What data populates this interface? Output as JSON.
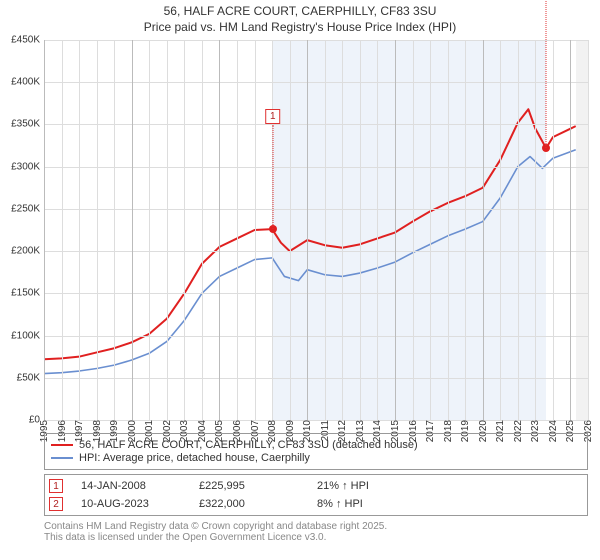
{
  "title_line1": "56, HALF ACRE COURT, CAERPHILLY, CF83 3SU",
  "title_line2": "Price paid vs. HM Land Registry's House Price Index (HPI)",
  "chart": {
    "type": "line",
    "background_color": "#ffffff",
    "grid_color": "#dddddd",
    "grid_color_emph": "#bbbbbb",
    "x_min": 1995,
    "x_max": 2026,
    "y_min": 0,
    "y_max": 450000,
    "ytick_step": 50000,
    "yticks": [
      "£0",
      "£50K",
      "£100K",
      "£150K",
      "£200K",
      "£250K",
      "£300K",
      "£350K",
      "£400K",
      "£450K"
    ],
    "xticks": [
      1995,
      1996,
      1997,
      1998,
      1999,
      2000,
      2001,
      2002,
      2003,
      2004,
      2005,
      2006,
      2007,
      2008,
      2009,
      2010,
      2011,
      2012,
      2013,
      2014,
      2015,
      2016,
      2017,
      2018,
      2019,
      2020,
      2021,
      2022,
      2023,
      2024,
      2025,
      2026
    ],
    "shaded_region": {
      "from": 2008.04,
      "to": 2023.61,
      "color": "#eef3fa"
    },
    "shaded_future": {
      "from": 2025.3,
      "to": 2026,
      "color": "#f2f2f2"
    },
    "series": [
      {
        "name": "property",
        "label": "56, HALF ACRE COURT, CAERPHILLY, CF83 3SU (detached house)",
        "color": "#e02020",
        "line_width": 2,
        "data": [
          [
            1995,
            72000
          ],
          [
            1996,
            73000
          ],
          [
            1997,
            75000
          ],
          [
            1998,
            80000
          ],
          [
            1999,
            85000
          ],
          [
            2000,
            92000
          ],
          [
            2001,
            102000
          ],
          [
            2002,
            120000
          ],
          [
            2003,
            150000
          ],
          [
            2004,
            185000
          ],
          [
            2005,
            205000
          ],
          [
            2006,
            215000
          ],
          [
            2007,
            225000
          ],
          [
            2008,
            226000
          ],
          [
            2008.5,
            210000
          ],
          [
            2009,
            200000
          ],
          [
            2010,
            213000
          ],
          [
            2011,
            207000
          ],
          [
            2012,
            204000
          ],
          [
            2013,
            208000
          ],
          [
            2014,
            215000
          ],
          [
            2015,
            222000
          ],
          [
            2016,
            235000
          ],
          [
            2017,
            247000
          ],
          [
            2018,
            257000
          ],
          [
            2019,
            265000
          ],
          [
            2020,
            275000
          ],
          [
            2021,
            308000
          ],
          [
            2022,
            352000
          ],
          [
            2022.6,
            368000
          ],
          [
            2023,
            345000
          ],
          [
            2023.61,
            322000
          ],
          [
            2024,
            335000
          ],
          [
            2025,
            345000
          ],
          [
            2025.3,
            348000
          ]
        ]
      },
      {
        "name": "hpi",
        "label": "HPI: Average price, detached house, Caerphilly",
        "color": "#6a8fd0",
        "line_width": 1.6,
        "data": [
          [
            1995,
            55000
          ],
          [
            1996,
            56000
          ],
          [
            1997,
            58000
          ],
          [
            1998,
            61000
          ],
          [
            1999,
            65000
          ],
          [
            2000,
            71000
          ],
          [
            2001,
            79000
          ],
          [
            2002,
            93000
          ],
          [
            2003,
            118000
          ],
          [
            2004,
            150000
          ],
          [
            2005,
            170000
          ],
          [
            2006,
            180000
          ],
          [
            2007,
            190000
          ],
          [
            2008,
            192000
          ],
          [
            2008.7,
            170000
          ],
          [
            2009.5,
            165000
          ],
          [
            2010,
            178000
          ],
          [
            2011,
            172000
          ],
          [
            2012,
            170000
          ],
          [
            2013,
            174000
          ],
          [
            2014,
            180000
          ],
          [
            2015,
            187000
          ],
          [
            2016,
            198000
          ],
          [
            2017,
            208000
          ],
          [
            2018,
            218000
          ],
          [
            2019,
            226000
          ],
          [
            2020,
            235000
          ],
          [
            2021,
            263000
          ],
          [
            2022,
            300000
          ],
          [
            2022.7,
            312000
          ],
          [
            2023.4,
            298000
          ],
          [
            2024,
            310000
          ],
          [
            2025.3,
            320000
          ]
        ]
      }
    ],
    "markers": [
      {
        "key": "1",
        "x": 2008.04,
        "y": 225995,
        "color": "#e02020",
        "label_y_offset": -120
      },
      {
        "key": "2",
        "x": 2023.61,
        "y": 322000,
        "color": "#e02020",
        "label_y_offset": -255
      }
    ]
  },
  "legend": {
    "items": [
      {
        "color": "#e02020",
        "label": "56, HALF ACRE COURT, CAERPHILLY, CF83 3SU (detached house)"
      },
      {
        "color": "#6a8fd0",
        "label": "HPI: Average price, detached house, Caerphilly"
      }
    ]
  },
  "annotations_table": {
    "rows": [
      {
        "key": "1",
        "date": "14-JAN-2008",
        "price": "£225,995",
        "delta": "21% ↑ HPI"
      },
      {
        "key": "2",
        "date": "10-AUG-2023",
        "price": "£322,000",
        "delta": "8% ↑ HPI"
      }
    ]
  },
  "footnote_line1": "Contains HM Land Registry data © Crown copyright and database right 2025.",
  "footnote_line2": "This data is licensed under the Open Government Licence v3.0."
}
